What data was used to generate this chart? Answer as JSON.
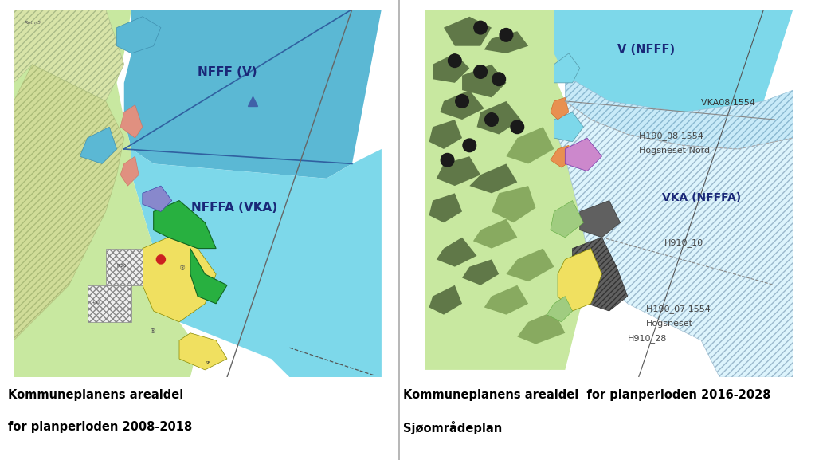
{
  "fig_width": 10.23,
  "fig_height": 5.77,
  "bg_color": "#ffffff",
  "left_map": {
    "title_line1": "Kommuneplanens arealdel",
    "title_line2": "for planperioden 2008-2018",
    "label_nfff": "NFFF (V)",
    "label_nfffa": "NFFFA (VKA)",
    "sea_color": "#7dd8ea",
    "sea_upper_color": "#5bb8d4",
    "land_color": "#c8e8a0",
    "hatch_land_color": "#d8e8b0",
    "yellow_color": "#f0e060",
    "green_color": "#28b040",
    "blue_patch_color": "#8888cc",
    "pink_color": "#e09080",
    "red_color": "#cc2020",
    "triangle_color": "#4060a8"
  },
  "right_map": {
    "title_line1": "Kommuneplanens arealdel  for planperioden 2016-2028",
    "title_line2": "Sjøområdeplan",
    "label_v_nfff": "V (NFFF)",
    "label_vka08": "VKA08 1554",
    "label_h190_08": "H190_08 1554",
    "label_hogsneset_nord": "Hogsneset Nord",
    "label_vka_nfffa": "VKA (NFFFA)",
    "label_h910_10": "H910_10",
    "label_h190_07": "H190_07 1554",
    "label_hogsneset": "Hogsneset",
    "label_h910_28": "H910_28",
    "sea_color": "#7dd8ea",
    "land_color": "#c8e8a0",
    "hatch_land_color": "#88aa60",
    "dark_land_color": "#607848",
    "purple_color": "#cc88cc",
    "orange_color": "#e89050",
    "dark_hatch_color": "#505050"
  },
  "divider_color": "#aaaaaa",
  "text_color": "#000000",
  "title_fontsize": 10.5,
  "label_fontsize": 9,
  "small_fontsize": 7
}
